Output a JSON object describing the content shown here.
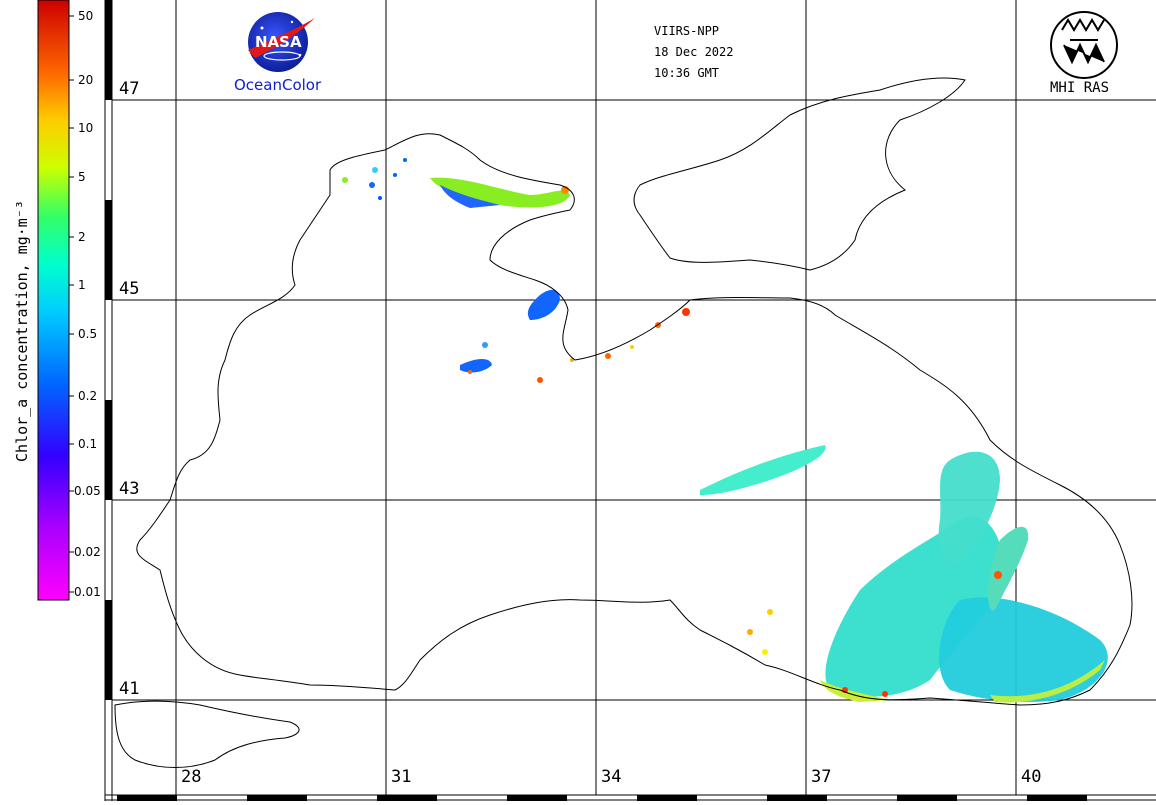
{
  "satellite": {
    "sensor": "VIIRS-NPP",
    "date": "18 Dec 2022",
    "time": "10:36 GMT"
  },
  "logos": {
    "nasa_text": "NASA",
    "oceancolor_text": "OceanColor",
    "mhi_text": "MHI RAS"
  },
  "colorbar": {
    "title": "Chlor_a concentration, mg·m⁻³",
    "ticks": [
      "50",
      "20",
      "10",
      "5",
      "2",
      "1",
      "0.5",
      "0.2",
      "0.1",
      "0.05",
      "0.02",
      "0.01"
    ],
    "colors": [
      "#ff00ff",
      "#7700ff",
      "#0000ff",
      "#0099ff",
      "#00ffff",
      "#00ff99",
      "#66ff00",
      "#ffff00",
      "#ffaa00",
      "#ff5500",
      "#ff0000",
      "#880000"
    ]
  },
  "map": {
    "latitude_labels": [
      "47",
      "45",
      "43",
      "41"
    ],
    "longitude_labels": [
      "28",
      "31",
      "34",
      "37",
      "40"
    ]
  },
  "chlorophyll_patches": [
    {
      "id": "nw-shelf",
      "color": "#66ff00"
    },
    {
      "id": "azov",
      "color": "#ffaa00"
    },
    {
      "id": "south-east",
      "color": "#00ffff"
    }
  ]
}
